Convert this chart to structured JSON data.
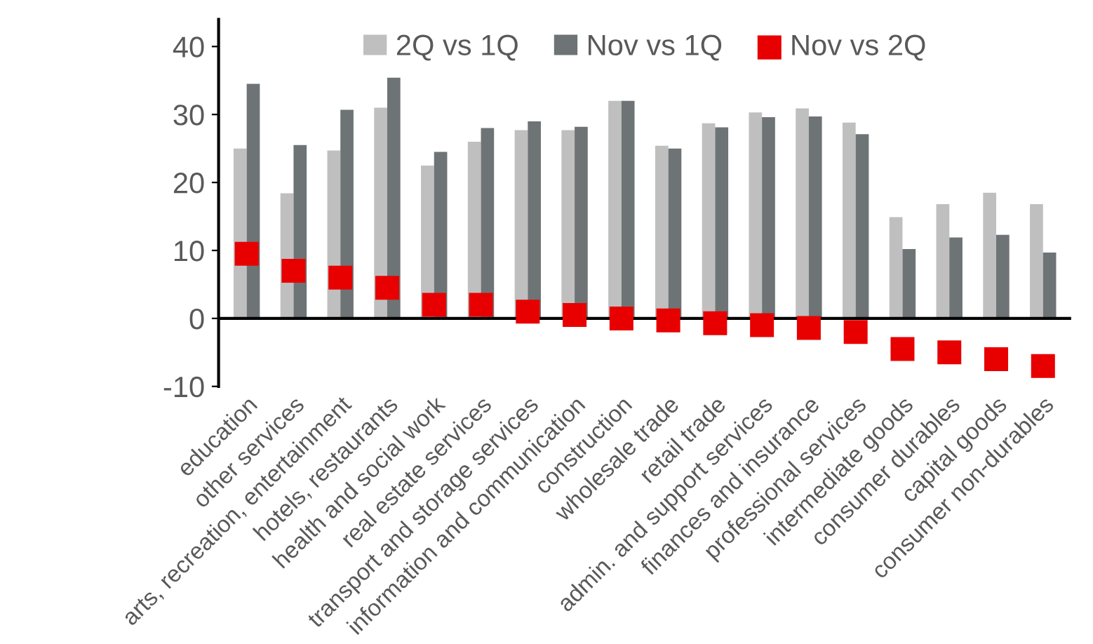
{
  "chart_data": {
    "type": "bar",
    "categories": [
      "education",
      "other services",
      "arts, recreation, entertainment",
      "hotels, restaurants",
      "health and social work",
      "real estate services",
      "transport and storage services",
      "information and communication",
      "construction",
      "wholesale trade",
      "retail trade",
      "admin. and support services",
      "finances and insurance",
      "professional services",
      "intermediate goods",
      "consumer durables",
      "capital goods",
      "consumer non-durables"
    ],
    "series": [
      {
        "name": "2Q vs 1Q",
        "color": "#bfbfbf",
        "values": [
          25,
          18.4,
          24.7,
          31,
          22.5,
          26,
          27.7,
          27.7,
          32,
          25.4,
          28.7,
          30.3,
          30.9,
          28.8,
          14.9,
          16.8,
          18.5,
          16.8
        ]
      },
      {
        "name": "Nov vs 1Q",
        "color": "#6e7475",
        "values": [
          34.5,
          25.5,
          30.7,
          35.4,
          24.5,
          28,
          29,
          28.2,
          32,
          25,
          28.1,
          29.6,
          29.7,
          27.1,
          10.2,
          11.9,
          12.3,
          9.7
        ]
      },
      {
        "name": "Nov vs 2Q",
        "color": "#e80000",
        "type": "scatter",
        "marker": "square",
        "values": [
          9.5,
          7,
          6,
          4.5,
          2,
          2,
          1,
          0.5,
          0,
          -0.3,
          -0.7,
          -1,
          -1.4,
          -2,
          -4.5,
          -5,
          -6,
          -7
        ]
      }
    ],
    "ylim": [
      -10,
      44
    ],
    "yticks": [
      -10,
      0,
      10,
      20,
      30,
      40
    ],
    "ref_lines": [
      {
        "axis": "y",
        "value": 0,
        "color": "#000000"
      }
    ],
    "legend": "top",
    "grid": false
  }
}
